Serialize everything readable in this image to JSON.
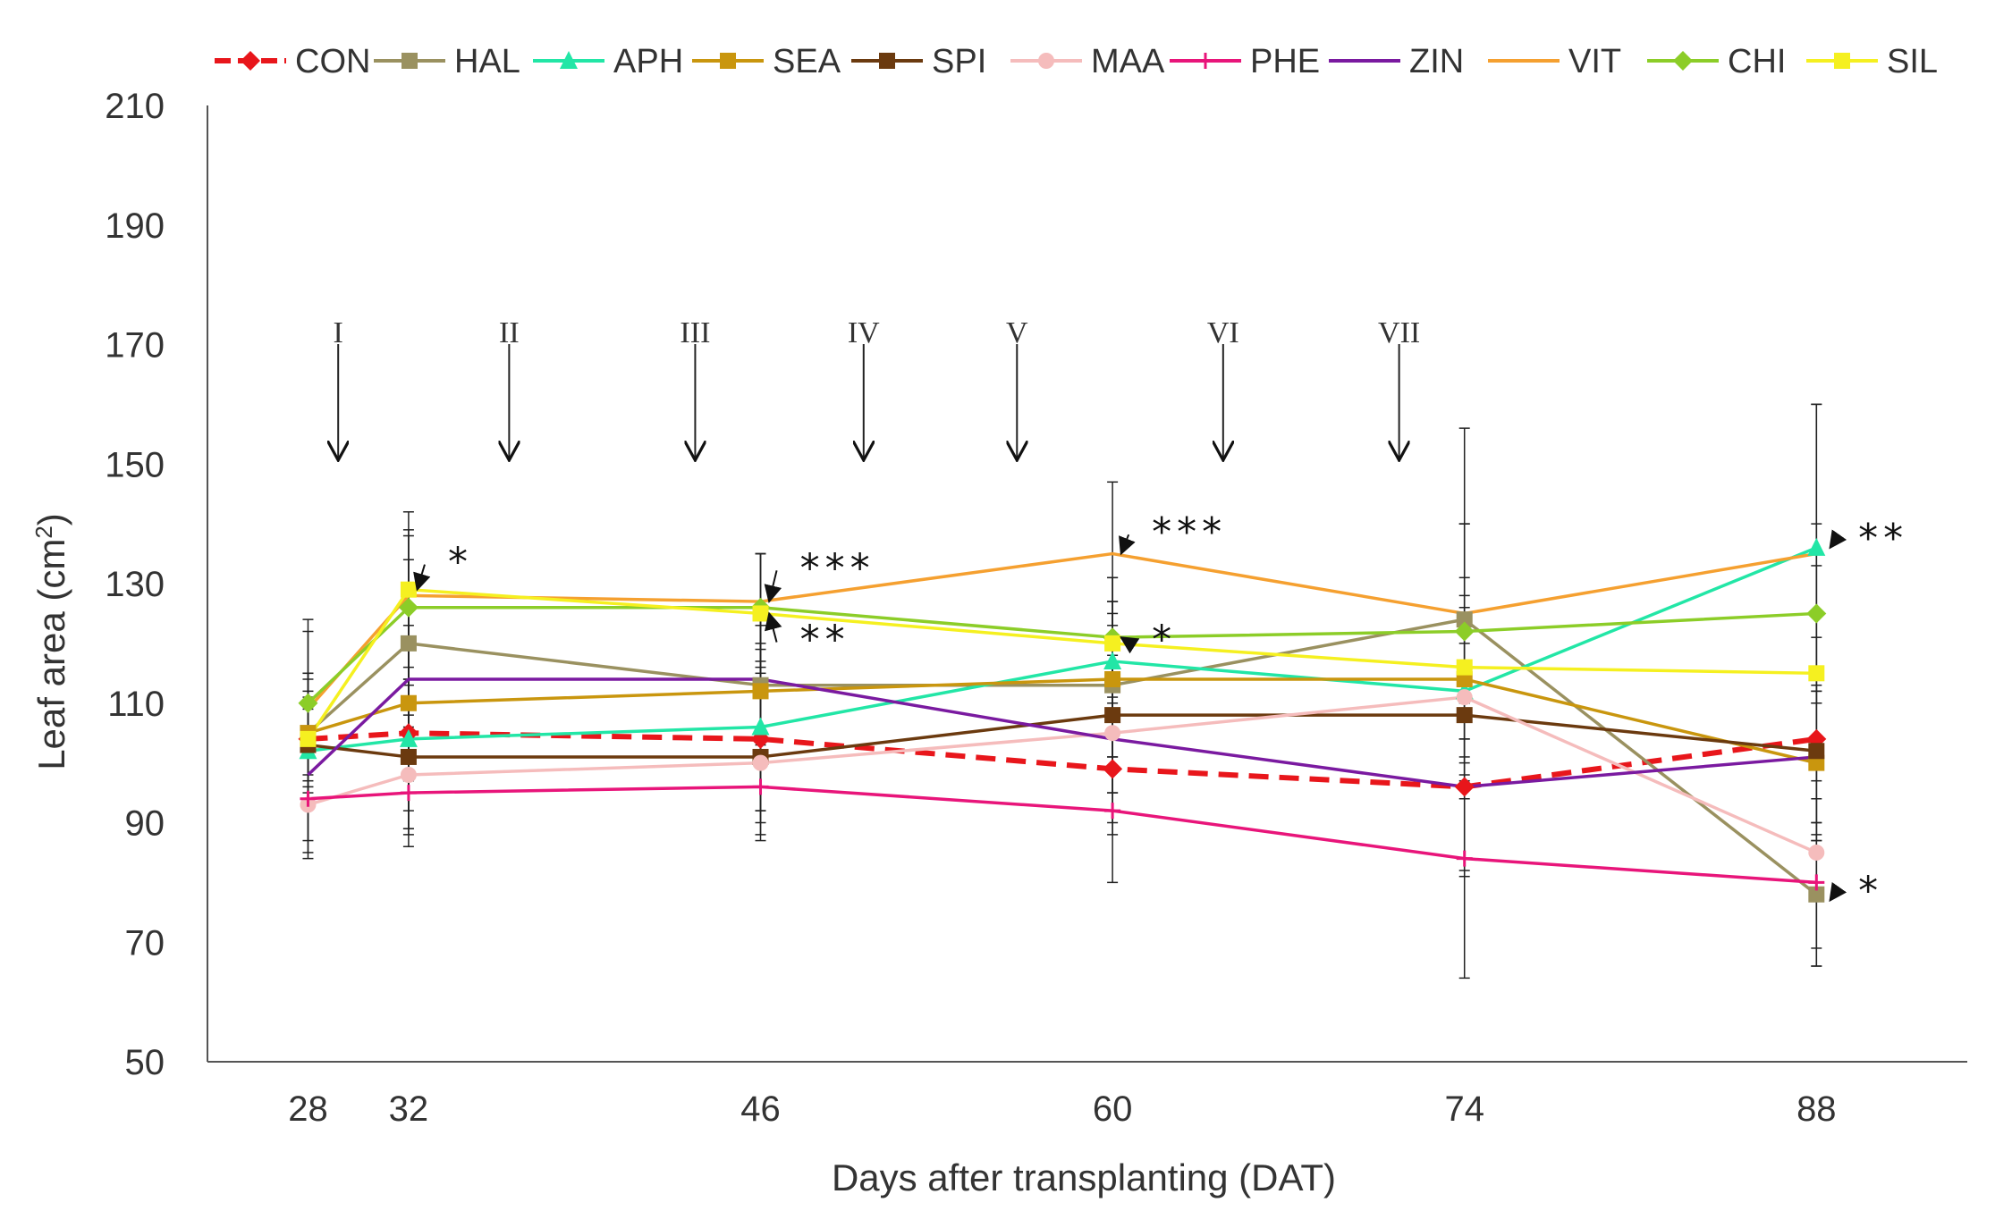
{
  "chart_data": {
    "type": "line",
    "title": "",
    "xlabel": "Days after transplanting (DAT)",
    "ylabel_prefix": "Leaf area (cm",
    "ylabel_sup": "2",
    "ylabel_suffix": ")",
    "x": [
      28,
      32,
      46,
      60,
      74,
      88
    ],
    "x_tick_labels": [
      "28",
      "32",
      "46",
      "60",
      "74",
      "88"
    ],
    "xlim": [
      24,
      94
    ],
    "ylim": [
      50,
      210
    ],
    "y_ticks": [
      50,
      70,
      90,
      110,
      130,
      150,
      170,
      190,
      210
    ],
    "y_tick_labels": [
      "50",
      "70",
      "90",
      "110",
      "130",
      "150",
      "170",
      "190",
      "210"
    ],
    "legend_position": "top",
    "series": [
      {
        "name": "CON",
        "color": "#e8161b",
        "dashed": true,
        "marker": "diamond",
        "values": [
          104,
          105,
          104,
          99,
          96,
          104
        ],
        "err": [
          11,
          16,
          12,
          11,
          15,
          17
        ]
      },
      {
        "name": "HAL",
        "color": "#9a9160",
        "dashed": false,
        "marker": "square",
        "values": [
          105,
          120,
          113,
          113,
          124,
          78
        ],
        "err": [
          9,
          14,
          10,
          12,
          16,
          12
        ]
      },
      {
        "name": "APH",
        "color": "#22e6a6",
        "dashed": false,
        "marker": "triangle",
        "values": [
          102,
          104,
          106,
          117,
          112,
          136
        ],
        "err": [
          8,
          12,
          14,
          10,
          14,
          24
        ]
      },
      {
        "name": "SEA",
        "color": "#c9960e",
        "dashed": false,
        "marker": "square",
        "values": [
          105,
          110,
          112,
          114,
          114,
          100
        ],
        "err": [
          10,
          13,
          12,
          13,
          14,
          13
        ]
      },
      {
        "name": "SPI",
        "color": "#6b3a0f",
        "dashed": false,
        "marker": "square",
        "values": [
          103,
          101,
          101,
          108,
          108,
          102
        ],
        "err": [
          9,
          12,
          11,
          13,
          12,
          14
        ]
      },
      {
        "name": "MAA",
        "color": "#f5bcbc",
        "dashed": false,
        "marker": "circle",
        "values": [
          93,
          98,
          100,
          105,
          111,
          85
        ],
        "err": [
          8,
          10,
          12,
          10,
          14,
          16
        ]
      },
      {
        "name": "PHE",
        "color": "#e8157a",
        "dashed": false,
        "marker": "plus",
        "values": [
          94,
          95,
          96,
          92,
          84,
          80
        ],
        "err": [
          10,
          9,
          9,
          12,
          20,
          14
        ]
      },
      {
        "name": "ZIN",
        "color": "#7a1aa0",
        "dashed": false,
        "marker": "none",
        "values": [
          98,
          114,
          114,
          104,
          96,
          101
        ],
        "err": [
          11,
          12,
          12,
          14,
          14,
          11
        ]
      },
      {
        "name": "VIT",
        "color": "#f5a030",
        "dashed": false,
        "marker": "none",
        "values": [
          109,
          128,
          127,
          135,
          125,
          135
        ],
        "err": [
          15,
          14,
          8,
          12,
          31,
          25
        ]
      },
      {
        "name": "CHI",
        "color": "#8ccd28",
        "dashed": false,
        "marker": "diamond",
        "values": [
          110,
          126,
          126,
          121,
          122,
          125
        ],
        "err": [
          12,
          12,
          9,
          10,
          18,
          15
        ]
      },
      {
        "name": "SIL",
        "color": "#f5f020",
        "dashed": false,
        "marker": "square",
        "values": [
          104,
          129,
          125,
          120,
          116,
          115
        ],
        "err": [
          7,
          10,
          10,
          11,
          15,
          18
        ]
      }
    ],
    "applications": [
      {
        "label": "I",
        "x": 29.2
      },
      {
        "label": "II",
        "x": 36
      },
      {
        "label": "III",
        "x": 43.4
      },
      {
        "label": "IV",
        "x": 50.1
      },
      {
        "label": "V",
        "x": 56.2
      },
      {
        "label": "VI",
        "x": 64.4
      },
      {
        "label": "VII",
        "x": 71.4
      }
    ],
    "annotations": [
      {
        "text": "*",
        "x": 32.5,
        "y": 132,
        "tip_x": 32.2,
        "tip_y": 129
      },
      {
        "text": "***",
        "x": 46.5,
        "y": 131,
        "tip_x": 46.2,
        "tip_y": 127
      },
      {
        "text": "**",
        "x": 46.5,
        "y": 119,
        "tip_x": 46.2,
        "tip_y": 125
      },
      {
        "text": "***",
        "x": 60.5,
        "y": 137,
        "tip_x": 60.2,
        "tip_y": 135
      },
      {
        "text": "*",
        "x": 60.5,
        "y": 119,
        "tip_x": 60.2,
        "tip_y": 121
      },
      {
        "text": "**",
        "x": 88.6,
        "y": 136,
        "tip_x": 88.4,
        "tip_y": 136
      },
      {
        "text": "*",
        "x": 88.6,
        "y": 77,
        "tip_x": 88.4,
        "tip_y": 77
      }
    ]
  }
}
